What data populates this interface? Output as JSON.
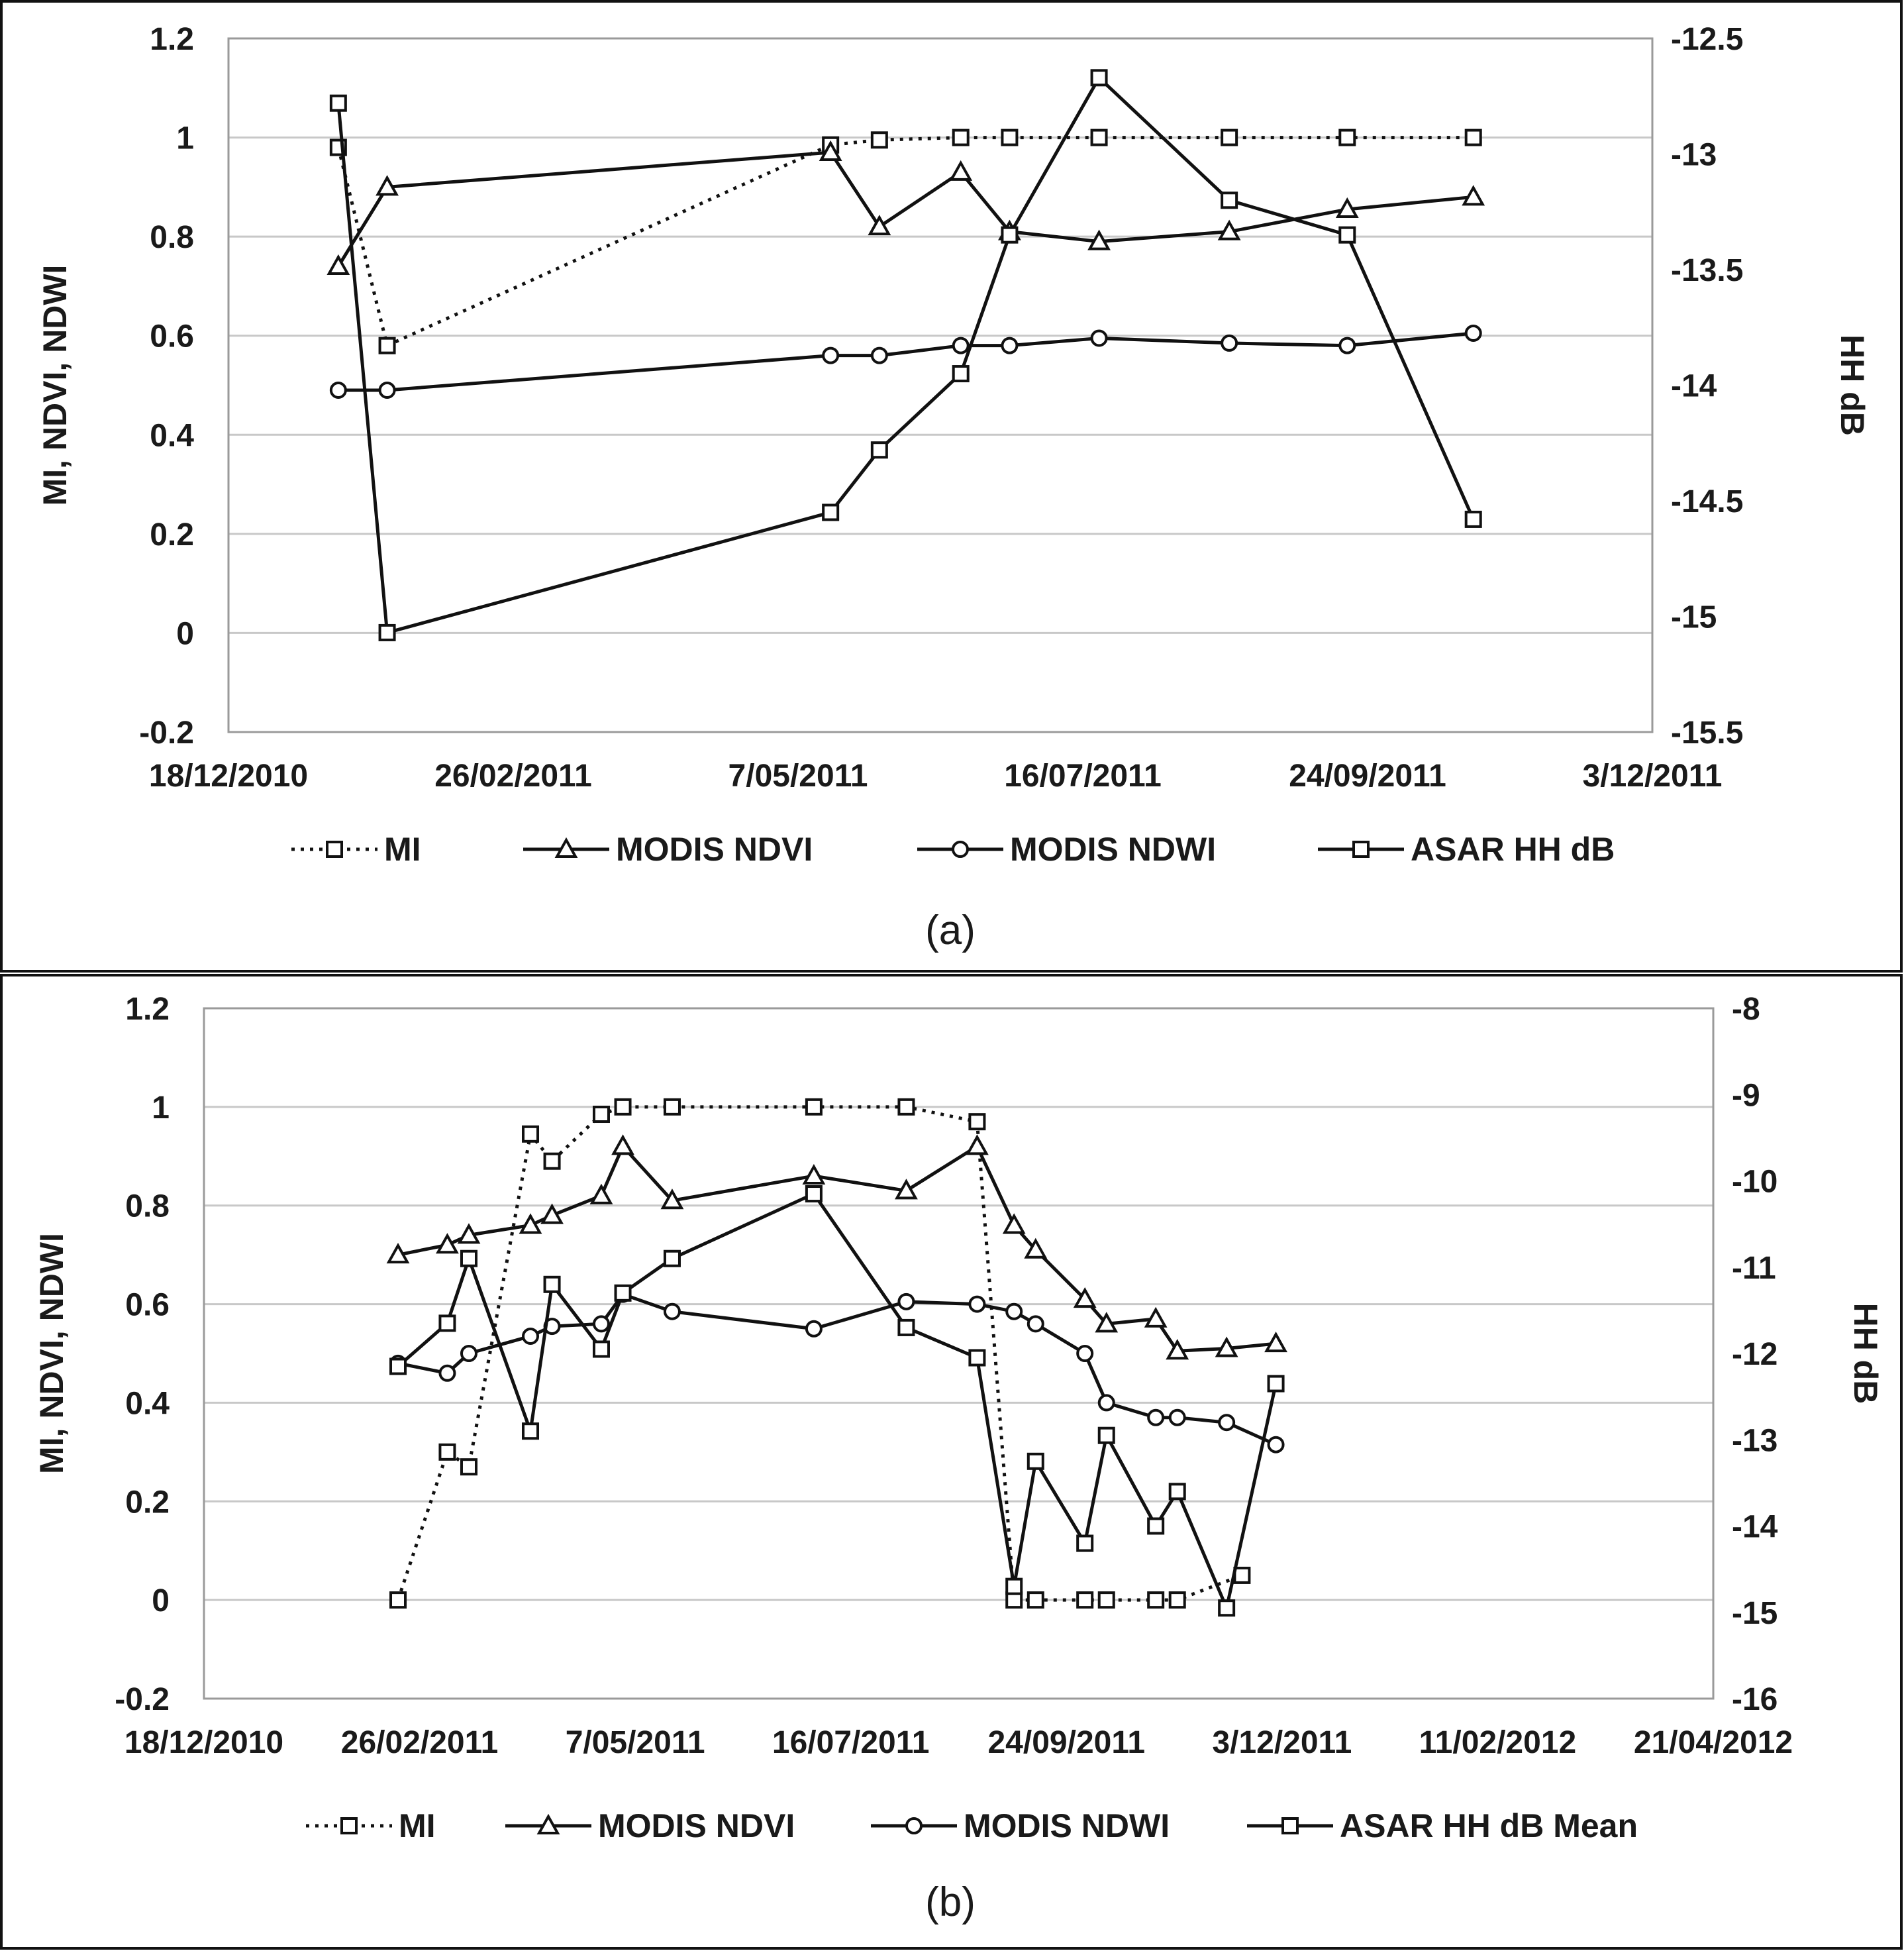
{
  "chart_data": [
    {
      "type": "line",
      "caption": "(a)",
      "ylabel": "MI, NDVI, NDWI",
      "y2label": "HH dB",
      "ylim": [
        -0.2,
        1.2
      ],
      "yticks": [
        "-0.2",
        "0",
        "0.2",
        "0.4",
        "0.6",
        "0.8",
        "1",
        "1.2"
      ],
      "y2lim": [
        -15.5,
        -12.5
      ],
      "y2ticks": [
        "-15.5",
        "-15",
        "-14.5",
        "-14",
        "-13.5",
        "-13",
        "-12.5"
      ],
      "xlim_days": [
        0,
        350
      ],
      "xticks": [
        "18/12/2010",
        "26/02/2011",
        "7/05/2011",
        "16/07/2011",
        "24/09/2011",
        "3/12/2011"
      ],
      "grid": true,
      "legend_position": "bottom",
      "series": [
        {
          "name": "MI",
          "axis": "left",
          "style": "dotted",
          "marker": "square",
          "x": [
            27,
            39,
            148,
            160,
            180,
            192,
            214,
            246,
            275,
            306
          ],
          "values": [
            0.98,
            0.58,
            0.985,
            0.995,
            1.0,
            1.0,
            1.0,
            1.0,
            1.0,
            1.0
          ]
        },
        {
          "name": "MODIS NDVI",
          "axis": "left",
          "style": "solid",
          "marker": "triangle",
          "x": [
            27,
            39,
            148,
            160,
            180,
            192,
            214,
            246,
            275,
            306
          ],
          "values": [
            0.74,
            0.9,
            0.97,
            0.82,
            0.93,
            0.81,
            0.79,
            0.81,
            0.855,
            0.88
          ]
        },
        {
          "name": "MODIS NDWI",
          "axis": "left",
          "style": "solid",
          "marker": "circle",
          "x": [
            27,
            39,
            148,
            160,
            180,
            192,
            214,
            246,
            275,
            306
          ],
          "values": [
            0.49,
            0.49,
            0.56,
            0.56,
            0.58,
            0.58,
            0.595,
            0.585,
            0.58,
            0.605
          ]
        },
        {
          "name": "ASAR HH dB",
          "axis": "right",
          "style": "solid",
          "marker": "square",
          "x": [
            27,
            39,
            148,
            160,
            180,
            192,
            214,
            246,
            275,
            306
          ],
          "values": [
            -12.78,
            -15.07,
            -14.55,
            -14.28,
            -13.95,
            -13.35,
            -12.67,
            -13.2,
            -13.35,
            -14.58
          ]
        }
      ]
    },
    {
      "type": "line",
      "caption": "(b)",
      "ylabel": "MI, NDVI, NDWI",
      "y2label": "HH dB",
      "ylim": [
        -0.2,
        1.2
      ],
      "yticks": [
        "-0.2",
        "0",
        "0.2",
        "0.4",
        "0.6",
        "0.8",
        "1",
        "1.2"
      ],
      "y2lim": [
        -16,
        -8
      ],
      "y2ticks": [
        "-16",
        "-15",
        "-14",
        "-13",
        "-12",
        "-11",
        "-10",
        "-9",
        "-8"
      ],
      "xlim_days": [
        0,
        490
      ],
      "xticks": [
        "18/12/2010",
        "26/02/2011",
        "7/05/2011",
        "16/07/2011",
        "24/09/2011",
        "3/12/2011",
        "11/02/2012",
        "21/04/2012"
      ],
      "grid": true,
      "legend_position": "bottom",
      "series": [
        {
          "name": "MI",
          "axis": "left",
          "style": "dotted",
          "marker": "square",
          "x": [
            63,
            79,
            86,
            106,
            113,
            129,
            136,
            152,
            198,
            228,
            251,
            263,
            270,
            286,
            293,
            309,
            316,
            337
          ],
          "values": [
            0.0,
            0.3,
            0.27,
            0.945,
            0.89,
            0.985,
            1.0,
            1.0,
            1.0,
            1.0,
            0.97,
            0.0,
            0.0,
            0.0,
            0.0,
            0.0,
            0.0,
            0.05
          ]
        },
        {
          "name": "MODIS NDVI",
          "axis": "left",
          "style": "solid",
          "marker": "triangle",
          "x": [
            63,
            79,
            86,
            106,
            113,
            129,
            136,
            152,
            198,
            228,
            251,
            263,
            270,
            286,
            293,
            309,
            316,
            332,
            348
          ],
          "values": [
            0.7,
            0.72,
            0.74,
            0.76,
            0.78,
            0.82,
            0.92,
            0.81,
            0.86,
            0.83,
            0.92,
            0.76,
            0.71,
            0.61,
            0.56,
            0.57,
            0.505,
            0.51,
            0.52
          ]
        },
        {
          "name": "MODIS NDWI",
          "axis": "left",
          "style": "solid",
          "marker": "circle",
          "x": [
            63,
            79,
            86,
            106,
            113,
            129,
            136,
            152,
            198,
            228,
            251,
            263,
            270,
            286,
            293,
            309,
            316,
            332,
            348
          ],
          "values": [
            0.48,
            0.46,
            0.5,
            0.535,
            0.555,
            0.56,
            0.62,
            0.585,
            0.55,
            0.605,
            0.6,
            0.585,
            0.56,
            0.5,
            0.4,
            0.37,
            0.37,
            0.36,
            0.315
          ]
        },
        {
          "name": "ASAR HH dB Mean",
          "axis": "right",
          "style": "solid",
          "marker": "square",
          "x": [
            63,
            79,
            86,
            106,
            113,
            129,
            136,
            152,
            198,
            228,
            251,
            263,
            270,
            286,
            293,
            309,
            316,
            332,
            348
          ],
          "values": [
            -12.15,
            -11.65,
            -10.9,
            -12.9,
            -11.2,
            -11.95,
            -11.3,
            -10.9,
            -10.15,
            -11.7,
            -12.05,
            -14.7,
            -13.25,
            -14.2,
            -12.95,
            -14.0,
            -13.6,
            -14.95,
            -12.35
          ]
        }
      ]
    }
  ]
}
